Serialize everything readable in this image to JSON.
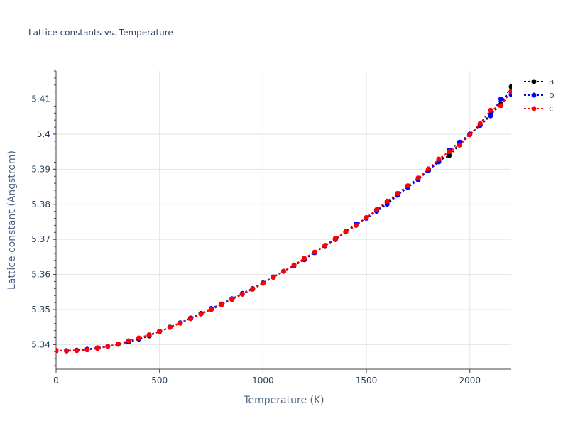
{
  "chart_data": {
    "type": "line",
    "title": "Lattice constants vs. Temperature",
    "xlabel": "Temperature (K)",
    "ylabel": "Lattice constant (Angstrom)",
    "xlim": [
      0,
      2200
    ],
    "ylim": [
      5.333,
      5.418
    ],
    "x_ticks": [
      0,
      500,
      1000,
      1500,
      2000
    ],
    "x_tick_labels": [
      "0",
      "500",
      "1000",
      "1500",
      "2000"
    ],
    "y_ticks": [
      5.34,
      5.35,
      5.36,
      5.37,
      5.38,
      5.39,
      5.4,
      5.41
    ],
    "y_tick_labels": [
      "5.34",
      "5.35",
      "5.36",
      "5.37",
      "5.38",
      "5.39",
      "5.4",
      "5.41"
    ],
    "grid": true,
    "legend_position": "top-right",
    "x": [
      0,
      50,
      100,
      150,
      200,
      250,
      300,
      350,
      400,
      450,
      500,
      550,
      600,
      650,
      700,
      750,
      800,
      850,
      900,
      950,
      1000,
      1050,
      1100,
      1150,
      1200,
      1250,
      1300,
      1350,
      1400,
      1450,
      1500,
      1550,
      1600,
      1650,
      1700,
      1750,
      1800,
      1850,
      1900,
      1950,
      2000,
      2050,
      2100,
      2150,
      2200
    ],
    "series": [
      {
        "name": "a",
        "color": "#000000",
        "values": [
          5.3383,
          5.3382,
          5.3384,
          5.3386,
          5.339,
          5.3395,
          5.3401,
          5.3408,
          5.3416,
          5.3425,
          5.3438,
          5.3449,
          5.3462,
          5.3474,
          5.3488,
          5.3501,
          5.3515,
          5.3529,
          5.3544,
          5.3558,
          5.3575,
          5.3592,
          5.3609,
          5.3625,
          5.3642,
          5.3663,
          5.3682,
          5.37,
          5.3721,
          5.374,
          5.3762,
          5.3783,
          5.3806,
          5.3826,
          5.3849,
          5.3872,
          5.3896,
          5.3924,
          5.3939,
          5.3969,
          5.4,
          5.4027,
          5.4055,
          5.4085,
          5.4135
        ]
      },
      {
        "name": "b",
        "color": "#0000ff",
        "values": [
          5.3383,
          5.3383,
          5.3384,
          5.3387,
          5.3391,
          5.3395,
          5.3401,
          5.341,
          5.3417,
          5.3427,
          5.3437,
          5.345,
          5.3462,
          5.3476,
          5.3489,
          5.3503,
          5.3516,
          5.3531,
          5.3546,
          5.356,
          5.3576,
          5.3593,
          5.3609,
          5.3626,
          5.3643,
          5.3662,
          5.3683,
          5.37,
          5.3722,
          5.3744,
          5.376,
          5.378,
          5.38,
          5.3826,
          5.3848,
          5.387,
          5.3897,
          5.3921,
          5.3954,
          5.3977,
          5.4,
          5.4025,
          5.4052,
          5.41,
          5.4113
        ]
      },
      {
        "name": "c",
        "color": "#ff0000",
        "values": [
          5.3383,
          5.3382,
          5.3383,
          5.3385,
          5.3389,
          5.3395,
          5.3402,
          5.3411,
          5.3419,
          5.3428,
          5.3438,
          5.3449,
          5.3461,
          5.3474,
          5.3487,
          5.35,
          5.3514,
          5.3529,
          5.3544,
          5.3559,
          5.3575,
          5.3592,
          5.3609,
          5.3627,
          5.3646,
          5.3664,
          5.3683,
          5.3703,
          5.3721,
          5.374,
          5.3762,
          5.3785,
          5.3809,
          5.3831,
          5.3853,
          5.3875,
          5.3901,
          5.3929,
          5.395,
          5.3969,
          5.3998,
          5.403,
          5.4068,
          5.4081,
          5.4122
        ]
      }
    ]
  }
}
